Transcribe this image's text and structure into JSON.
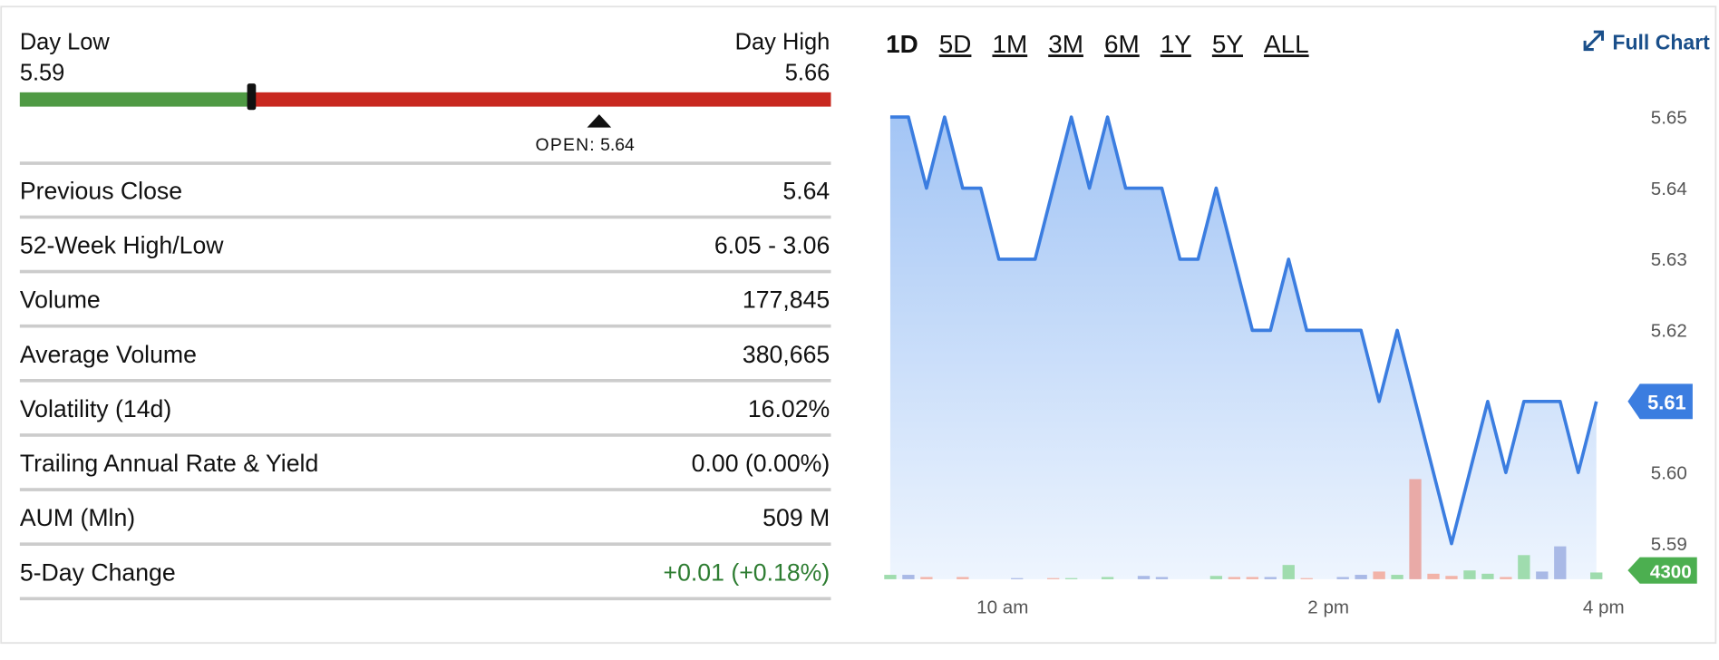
{
  "header": {
    "day_low_label": "Day Low",
    "day_low": 5.59,
    "day_high_label": "Day High",
    "day_high": 5.66,
    "open_label": "OPEN:",
    "open": 5.64
  },
  "stats": {
    "change_color": "#2e7d32",
    "rows": [
      [
        "Previous Close",
        "5.64"
      ],
      [
        "52-Week High/Low",
        "6.05 - 3.06"
      ],
      [
        "Volume",
        "177,845"
      ],
      [
        "Average Volume",
        "380,665"
      ],
      [
        "Volatility (14d)",
        "16.02%"
      ],
      [
        "Trailing Annual Rate & Yield",
        "0.00 (0.00%)"
      ],
      [
        "AUM (Mln)",
        "509 M"
      ],
      [
        "5-Day Change",
        "+0.01 (+0.18%)"
      ]
    ]
  },
  "chart": {
    "type": "line",
    "ranges": [
      "1D",
      "5D",
      "1M",
      "3M",
      "6M",
      "1Y",
      "5Y",
      "ALL"
    ],
    "selected_range": "1D",
    "full_chart": "Full Chart",
    "color": "#3b7de0",
    "values": [
      5.65,
      5.65,
      5.64,
      5.65,
      5.64,
      5.64,
      5.63,
      5.63,
      5.63,
      5.64,
      5.65,
      5.64,
      5.65,
      5.64,
      5.64,
      5.64,
      5.63,
      5.63,
      5.64,
      5.63,
      5.62,
      5.62,
      5.63,
      5.62,
      5.62,
      5.62,
      5.62,
      5.61,
      5.62,
      5.61,
      5.6,
      5.59,
      5.6,
      5.61,
      5.6,
      5.61,
      5.61,
      5.61,
      5.6,
      5.61
    ],
    "volumes": [
      2800,
      2800,
      1400,
      0,
      1400,
      0,
      0,
      700,
      0,
      700,
      700,
      0,
      1400,
      0,
      2100,
      1400,
      0,
      0,
      2100,
      1400,
      1400,
      1400,
      9100,
      700,
      0,
      1400,
      2800,
      4900,
      2800,
      64000,
      3500,
      2100,
      5600,
      3500,
      1400,
      15400,
      4900,
      21000,
      0,
      4300
    ],
    "volume_colors": [
      "#9fdcae",
      "#a9b9e6",
      "#f2b3a8",
      "#ccc",
      "#f2b3a8",
      "#ccc",
      "#ccc",
      "#a9b9e6",
      "#ccc",
      "#f2b3a8",
      "#9fdcae",
      "#ccc",
      "#9fdcae",
      "#ccc",
      "#a9b9e6",
      "#a9b9e6",
      "#ccc",
      "#ccc",
      "#9fdcae",
      "#f2b3a8",
      "#f2b3a8",
      "#a9b9e6",
      "#9fdcae",
      "#f2b3a8",
      "#ccc",
      "#a9b9e6",
      "#a9b9e6",
      "#f2b3a8",
      "#9fdcae",
      "#e9aaa7",
      "#f2b3a8",
      "#f2b3a8",
      "#9fdcae",
      "#9fdcae",
      "#f2b3a8",
      "#9fdcae",
      "#a9b9e6",
      "#a9b9e6",
      "#ccc",
      "#9fdcae"
    ],
    "xlim": [
      0,
      39.4
    ],
    "xticks": [
      {
        "value": 6.2,
        "label": "10 am"
      },
      {
        "value": 24.2,
        "label": "2 pm"
      },
      {
        "value": 39.4,
        "label": "4 pm"
      }
    ],
    "ylim": [
      5.585,
      5.651
    ],
    "yticks": [
      5.59,
      {
        "value": 5.6,
        "label": "5.60"
      },
      5.62,
      5.63,
      5.64,
      5.65
    ],
    "vlim": [
      0,
      300000
    ]
  }
}
